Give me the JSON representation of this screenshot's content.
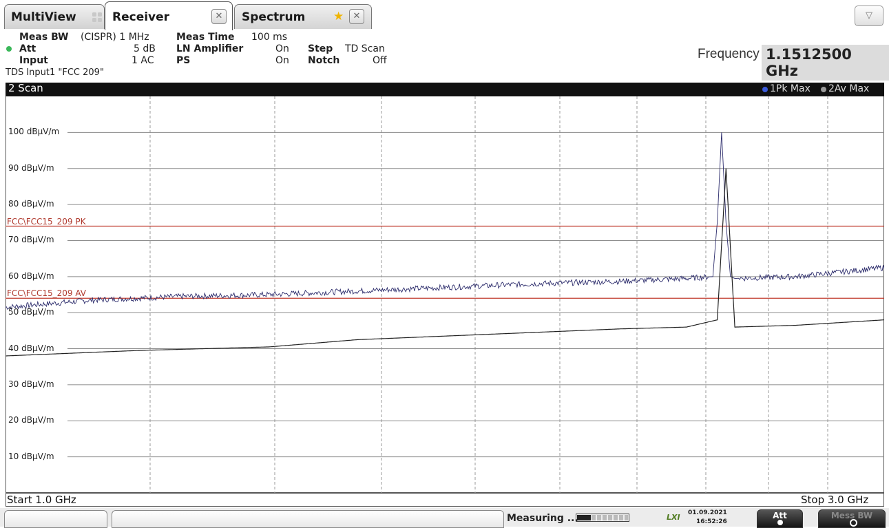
{
  "tabs": {
    "multiview": "MultiView",
    "receiver": "Receiver",
    "spectrum": "Spectrum"
  },
  "params": {
    "meas_bw_label": "Meas BW",
    "meas_bw_value": "(CISPR) 1 MHz",
    "att_label": "Att",
    "att_value": "5 dB",
    "input_label": "Input",
    "input_value": "1 AC",
    "meas_time_label": "Meas Time",
    "meas_time_value": "100 ms",
    "ln_amp_label": "LN Amplifier",
    "ln_amp_value": "On",
    "ps_label": "PS",
    "ps_value": "On",
    "step_label": "Step",
    "step_value": "TD Scan",
    "notch_label": "Notch",
    "notch_value": "Off",
    "tds_input": "TDS Input1 \"FCC 209\""
  },
  "frequency": {
    "label": "Frequency",
    "value": "1.1512500 GHz"
  },
  "scan": {
    "title": "2 Scan",
    "legend_pk": "1Pk Max",
    "legend_av": "2Av Max"
  },
  "colors": {
    "pk_dot": "#3b5bdb",
    "av_dot": "#7a7a7a",
    "limit_line": "#c0392b",
    "pk_trace": "#2b2b6b",
    "av_trace": "#222222"
  },
  "chart_data": {
    "type": "line",
    "xlim_ghz": [
      1.0,
      3.0
    ],
    "ylim": [
      0,
      110
    ],
    "y_ticks": [
      "100 dBµV/m",
      "90 dBµV/m",
      "80 dBµV/m",
      "70 dBµV/m",
      "60 dBµV/m",
      "50 dBµV/m",
      "40 dBµV/m",
      "30 dBµV/m",
      "20 dBµV/m",
      "10 dBµV/m"
    ],
    "limits": [
      {
        "name": "FCC\\FCC15_209 PK",
        "value": 74
      },
      {
        "name": "FCC\\FCC15_209 AV",
        "value": 54
      }
    ],
    "series": [
      {
        "name": "1Pk Max",
        "x": [
          1.0,
          1.2,
          1.4,
          1.6,
          1.8,
          2.0,
          2.2,
          2.4,
          2.55,
          2.61,
          2.62,
          2.63,
          2.64,
          2.65,
          2.66,
          2.8,
          3.0
        ],
        "y": [
          51.5,
          53.5,
          54.5,
          55,
          56,
          57,
          58,
          58.7,
          59.5,
          60,
          75,
          100,
          75,
          60,
          59.5,
          60,
          62.5
        ]
      },
      {
        "name": "2Av Max",
        "x": [
          1.0,
          1.3,
          1.6,
          1.8,
          2.0,
          2.2,
          2.4,
          2.55,
          2.62,
          2.64,
          2.66,
          2.8,
          3.0
        ],
        "y": [
          38,
          39.5,
          40.5,
          42.5,
          43.5,
          44.5,
          45.5,
          46,
          48,
          90,
          46,
          46.5,
          48
        ]
      }
    ]
  },
  "axis": {
    "start": "Start 1.0 GHz",
    "stop": "Stop 3.0 GHz"
  },
  "status": {
    "measuring": "Measuring ...",
    "date": "01.09.2021",
    "time": "16:52:26",
    "lxi": "LXI",
    "att_btn": "Att",
    "mode_btn": "Mess BW"
  }
}
